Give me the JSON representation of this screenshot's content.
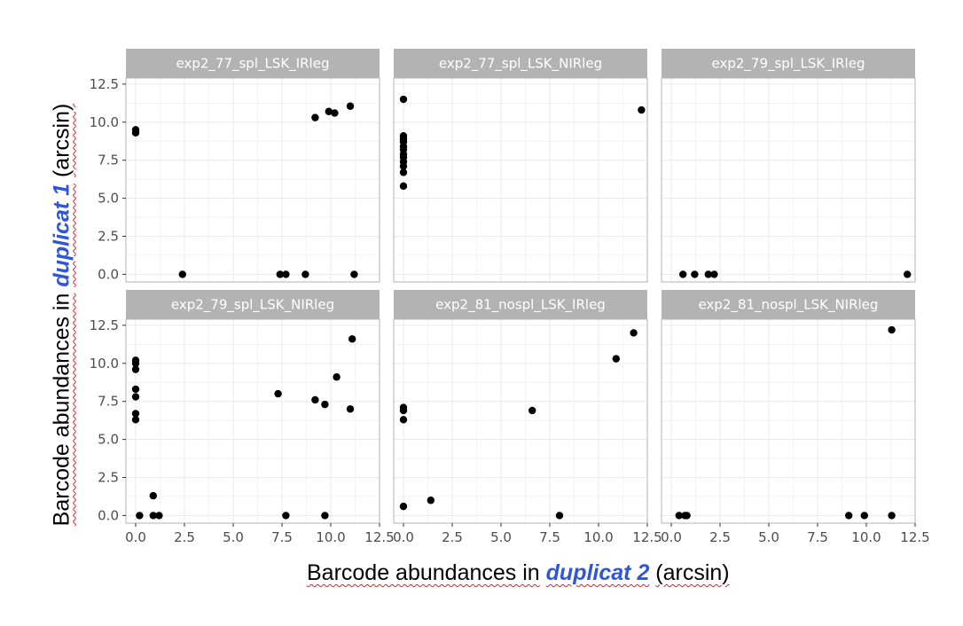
{
  "axis_titles": {
    "x_prefix": "Barcode abundances in",
    "x_emphasis": "duplicat 2",
    "x_suffix": "(arcsin)",
    "y_prefix": "Barcode abundances in",
    "y_emphasis": "duplicat 1",
    "y_suffix": "(arcsin)"
  },
  "colors": {
    "point": "#000000",
    "strip_bg": "#b3b3b3",
    "strip_text": "#ffffff",
    "grid": "#ebebeb",
    "panel_border": "#b3b3b3",
    "emphasis": "#2f56d6",
    "spellcheck_underline": "#e02020"
  },
  "chart_data": {
    "type": "scatter",
    "layout": "facet grid 2 rows x 3 columns, shared axes",
    "xlim": [
      -0.5,
      12.5
    ],
    "ylim": [
      -0.5,
      12.9
    ],
    "x_ticks": [
      "0.0",
      "2.5",
      "5.0",
      "7.5",
      "10.0",
      "12.5"
    ],
    "y_ticks": [
      "0.0",
      "2.5",
      "5.0",
      "7.5",
      "10.0",
      "12.5"
    ],
    "grid": true,
    "panels": [
      {
        "title": "exp2_77_spl_LSK_IRleg",
        "points": [
          [
            0,
            9.5
          ],
          [
            0,
            9.3
          ],
          [
            2.4,
            0
          ],
          [
            7.4,
            0
          ],
          [
            7.7,
            0
          ],
          [
            8.7,
            0
          ],
          [
            9.2,
            10.3
          ],
          [
            9.9,
            10.7
          ],
          [
            10.2,
            10.6
          ],
          [
            11.0,
            11.05
          ],
          [
            11.2,
            0
          ]
        ]
      },
      {
        "title": "exp2_77_spl_LSK_NIRleg",
        "points": [
          [
            0,
            11.5
          ],
          [
            0,
            9.1
          ],
          [
            0,
            8.9
          ],
          [
            0,
            8.7
          ],
          [
            0,
            8.4
          ],
          [
            0,
            8.2
          ],
          [
            0,
            7.9
          ],
          [
            0,
            7.7
          ],
          [
            0,
            7.4
          ],
          [
            0,
            7.1
          ],
          [
            0,
            6.7
          ],
          [
            0,
            5.8
          ],
          [
            12.2,
            10.8
          ]
        ]
      },
      {
        "title": "exp2_79_spl_LSK_IRleg",
        "points": [
          [
            0.6,
            0
          ],
          [
            1.2,
            0
          ],
          [
            1.9,
            0
          ],
          [
            2.2,
            0
          ],
          [
            12.1,
            0
          ]
        ]
      },
      {
        "title": "exp2_79_spl_LSK_NIRleg",
        "points": [
          [
            0,
            10.2
          ],
          [
            0,
            10.0
          ],
          [
            0,
            9.6
          ],
          [
            0,
            8.3
          ],
          [
            0,
            7.8
          ],
          [
            0,
            6.7
          ],
          [
            0,
            6.3
          ],
          [
            0.2,
            0
          ],
          [
            0.9,
            1.3
          ],
          [
            0.9,
            0
          ],
          [
            1.2,
            0
          ],
          [
            7.3,
            8.0
          ],
          [
            7.7,
            0
          ],
          [
            9.2,
            7.6
          ],
          [
            9.7,
            7.3
          ],
          [
            9.7,
            0
          ],
          [
            10.3,
            9.1
          ],
          [
            11.0,
            7.0
          ],
          [
            11.1,
            11.6
          ]
        ]
      },
      {
        "title": "exp2_81_nospl_LSK_IRleg",
        "points": [
          [
            0,
            7.1
          ],
          [
            0,
            6.9
          ],
          [
            0,
            6.3
          ],
          [
            0,
            0.6
          ],
          [
            1.4,
            1.0
          ],
          [
            6.6,
            6.9
          ],
          [
            8.0,
            0
          ],
          [
            10.9,
            10.3
          ],
          [
            11.8,
            12.0
          ]
        ]
      },
      {
        "title": "exp2_81_nospl_LSK_NIRleg",
        "points": [
          [
            0.4,
            0
          ],
          [
            0.7,
            0
          ],
          [
            0.8,
            0
          ],
          [
            9.1,
            0
          ],
          [
            9.9,
            0
          ],
          [
            11.3,
            12.2
          ],
          [
            11.3,
            0
          ]
        ]
      }
    ]
  }
}
